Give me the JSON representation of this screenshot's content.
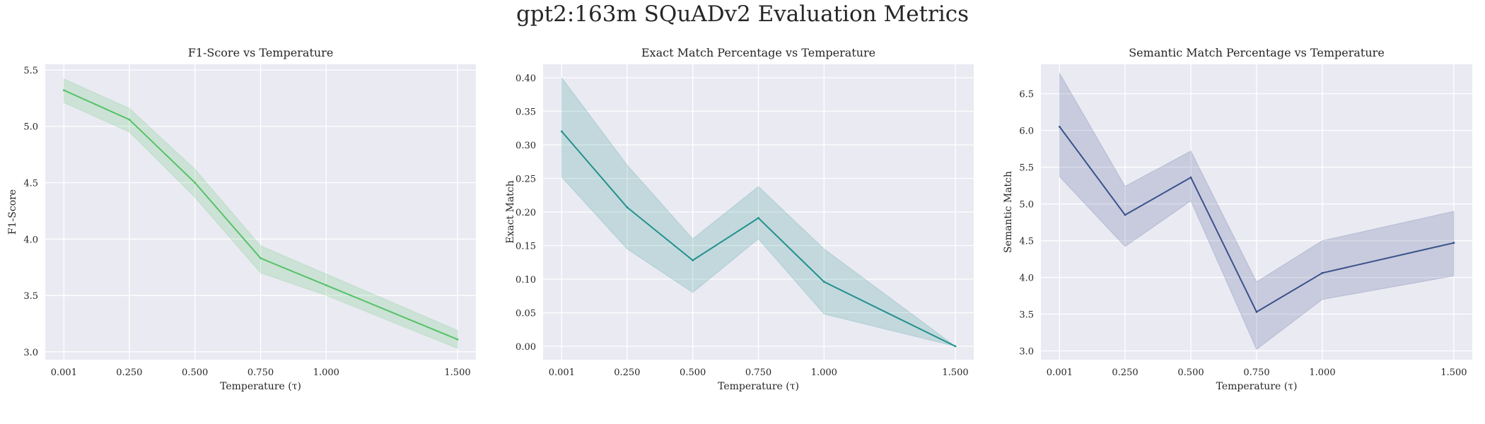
{
  "figure": {
    "suptitle": "gpt2:163m SQuADv2 Evaluation Metrics"
  },
  "chart_data": [
    {
      "type": "line",
      "title": "F1-Score vs Temperature",
      "xlabel": "Temperature (τ)",
      "ylabel": "F1-Score",
      "x": [
        0.001,
        0.25,
        0.5,
        0.75,
        1.0,
        1.5
      ],
      "x_tick_labels": [
        "0.001",
        "0.250",
        "0.500",
        "0.750",
        "1.000",
        "1.500"
      ],
      "xlim": [
        -0.07,
        1.57
      ],
      "ylim": [
        2.93,
        5.55
      ],
      "y_ticks": [
        3.0,
        3.5,
        4.0,
        4.5,
        5.0,
        5.5
      ],
      "y_tick_labels": [
        "3.0",
        "3.5",
        "4.0",
        "4.5",
        "5.0",
        "5.5"
      ],
      "grid": true,
      "series": [
        {
          "values": [
            5.32,
            5.06,
            4.5,
            3.83,
            3.59,
            3.11
          ],
          "ci_lower": [
            5.21,
            4.95,
            4.37,
            3.7,
            3.5,
            3.03
          ],
          "ci_upper": [
            5.42,
            5.16,
            4.62,
            3.94,
            3.69,
            3.19
          ],
          "color": "#55c267"
        }
      ]
    },
    {
      "type": "line",
      "title": "Exact Match Percentage vs Temperature",
      "xlabel": "Temperature (τ)",
      "ylabel": "Exact Match",
      "x": [
        0.001,
        0.25,
        0.5,
        0.75,
        1.0,
        1.5
      ],
      "x_tick_labels": [
        "0.001",
        "0.250",
        "0.500",
        "0.750",
        "1.000",
        "1.500"
      ],
      "xlim": [
        -0.07,
        1.57
      ],
      "ylim": [
        -0.02,
        0.42
      ],
      "y_ticks": [
        0.0,
        0.05,
        0.1,
        0.15,
        0.2,
        0.25,
        0.3,
        0.35,
        0.4
      ],
      "y_tick_labels": [
        "0.00",
        "0.05",
        "0.10",
        "0.15",
        "0.20",
        "0.25",
        "0.30",
        "0.35",
        "0.40"
      ],
      "grid": true,
      "series": [
        {
          "values": [
            0.32,
            0.207,
            0.128,
            0.191,
            0.096,
            0.0
          ],
          "ci_lower": [
            0.252,
            0.145,
            0.08,
            0.16,
            0.048,
            0.0
          ],
          "ci_upper": [
            0.4,
            0.27,
            0.16,
            0.238,
            0.145,
            0.0
          ],
          "color": "#21918c"
        }
      ]
    },
    {
      "type": "line",
      "title": "Semantic Match Percentage vs Temperature",
      "xlabel": "Temperature (τ)",
      "ylabel": "Semantic Match",
      "x": [
        0.001,
        0.25,
        0.5,
        0.75,
        1.0,
        1.5
      ],
      "x_tick_labels": [
        "0.001",
        "0.250",
        "0.500",
        "0.750",
        "1.000",
        "1.500"
      ],
      "xlim": [
        -0.07,
        1.57
      ],
      "ylim": [
        2.88,
        6.9
      ],
      "y_ticks": [
        3.0,
        3.5,
        4.0,
        4.5,
        5.0,
        5.5,
        6.0,
        6.5
      ],
      "y_tick_labels": [
        "3.0",
        "3.5",
        "4.0",
        "4.5",
        "5.0",
        "5.5",
        "6.0",
        "6.5"
      ],
      "grid": true,
      "series": [
        {
          "values": [
            6.05,
            4.85,
            5.36,
            3.53,
            4.06,
            4.47
          ],
          "ci_lower": [
            5.37,
            4.42,
            5.04,
            3.02,
            3.7,
            4.02
          ],
          "ci_upper": [
            6.78,
            5.24,
            5.72,
            3.94,
            4.5,
            4.9
          ],
          "color": "#3b528b"
        }
      ]
    }
  ]
}
